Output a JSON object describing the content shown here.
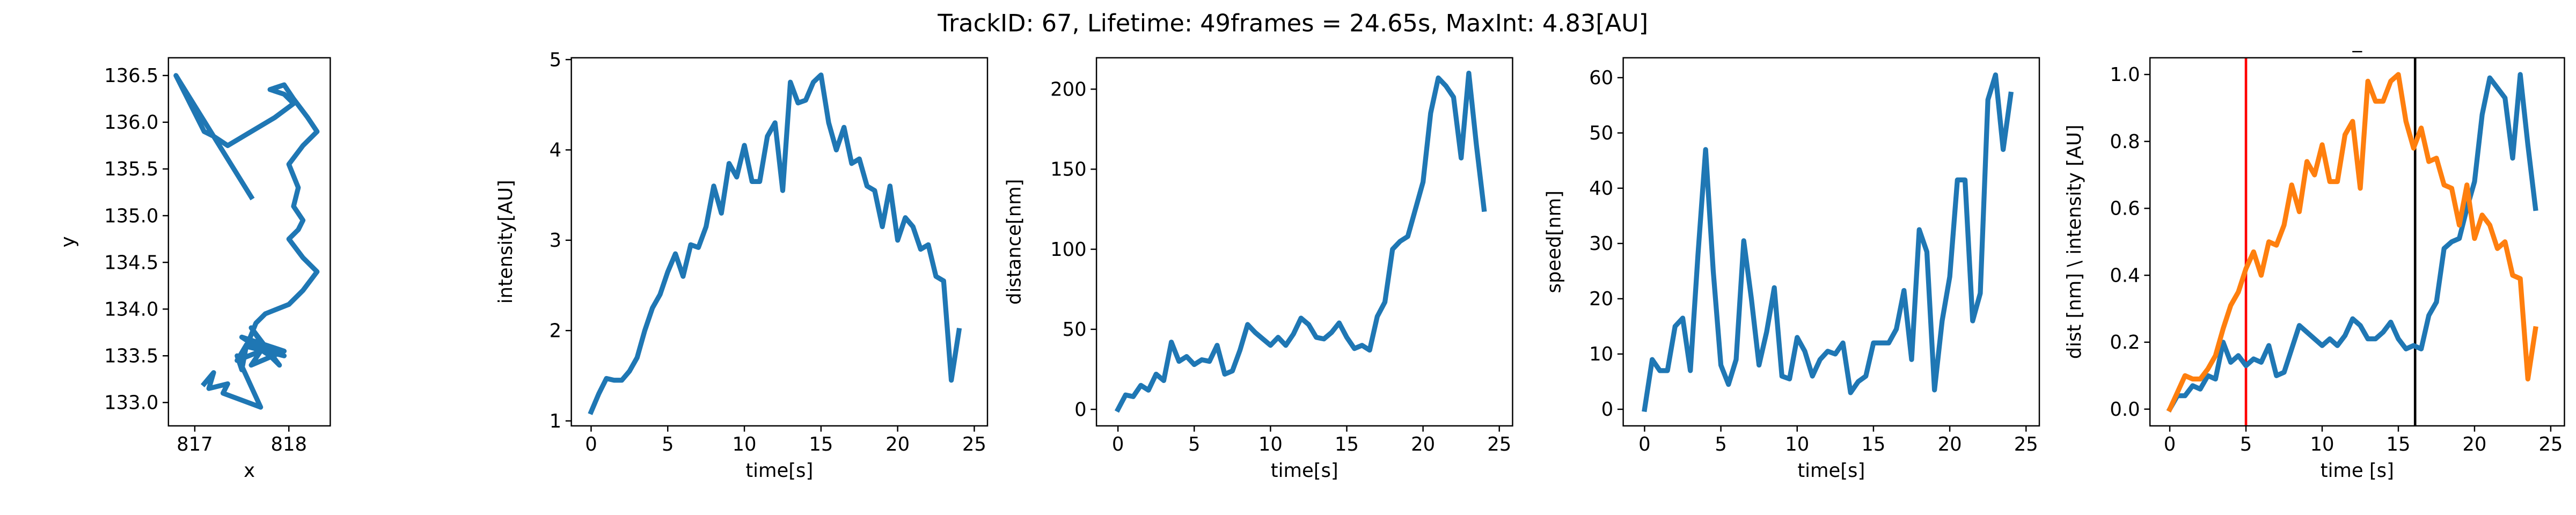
{
  "title": "TrackID: 67, Lifetime: 49frames = 24.65s, MaxInt: 4.83[AU]",
  "chart_data": [
    {
      "type": "line",
      "xlabel": "x",
      "ylabel": "y",
      "x": [
        817.1,
        817.2,
        817.15,
        817.35,
        817.3,
        817.7,
        817.45,
        817.5,
        817.55,
        817.45,
        817.7,
        817.6,
        817.95,
        817.5,
        817.8,
        817.6,
        817.9,
        817.7,
        817.95,
        817.55,
        817.65,
        817.75,
        818.0,
        818.15,
        818.3,
        818.15,
        818.0,
        818.1,
        818.15,
        818.05,
        818.1,
        818.0,
        818.15,
        818.3,
        818.2,
        818.05,
        817.95,
        817.8,
        817.95,
        818.05,
        817.85,
        817.6,
        817.35,
        817.2,
        817.1,
        816.95,
        816.8,
        817.2,
        817.6
      ],
      "series": [
        {
          "color": "#1f77b4",
          "values": [
            133.2,
            133.32,
            133.15,
            133.2,
            133.1,
            132.95,
            133.5,
            133.35,
            133.62,
            133.45,
            133.55,
            133.4,
            133.55,
            133.7,
            133.5,
            133.8,
            133.4,
            133.6,
            133.5,
            133.6,
            133.85,
            133.95,
            134.05,
            134.2,
            134.4,
            134.55,
            134.75,
            134.85,
            134.95,
            135.1,
            135.3,
            135.55,
            135.75,
            135.9,
            136.05,
            136.25,
            136.4,
            136.35,
            136.3,
            136.2,
            136.05,
            135.9,
            135.75,
            135.85,
            135.9,
            136.2,
            136.5,
            135.85,
            135.2
          ]
        }
      ],
      "xlim": [
        816.72,
        818.44
      ],
      "xticks": [
        817,
        818
      ],
      "ylim": [
        132.75,
        136.69
      ],
      "yticks": [
        {
          "value": 133,
          "label": "133.0"
        },
        133.5,
        {
          "value": 134,
          "label": "134.0"
        },
        134.5,
        {
          "value": 135,
          "label": "135.0"
        },
        135.5,
        {
          "value": 136,
          "label": "136.0"
        },
        136.5
      ]
    },
    {
      "type": "line",
      "xlabel": "time[s]",
      "ylabel": "intensity[AU]",
      "x": [
        0,
        0.5,
        1,
        1.5,
        2,
        2.5,
        3,
        3.5,
        4,
        4.5,
        5,
        5.5,
        6,
        6.5,
        7,
        7.5,
        8,
        8.5,
        9,
        9.5,
        10,
        10.5,
        11,
        11.5,
        12,
        12.5,
        13,
        13.5,
        14,
        14.5,
        15,
        15.5,
        16,
        16.5,
        17,
        17.5,
        18,
        18.5,
        19,
        19.5,
        20,
        20.5,
        21,
        21.5,
        22,
        22.5,
        23,
        23.5,
        24
      ],
      "series": [
        {
          "color": "#1f77b4",
          "values": [
            1.1,
            1.3,
            1.47,
            1.45,
            1.45,
            1.55,
            1.7,
            2.0,
            2.25,
            2.4,
            2.65,
            2.85,
            2.6,
            2.95,
            2.92,
            3.15,
            3.6,
            3.3,
            3.85,
            3.7,
            4.05,
            3.65,
            3.65,
            4.15,
            4.3,
            3.55,
            4.75,
            4.52,
            4.55,
            4.75,
            4.83,
            4.3,
            4.0,
            4.25,
            3.85,
            3.9,
            3.6,
            3.55,
            3.15,
            3.6,
            3.0,
            3.25,
            3.15,
            2.9,
            2.95,
            2.6,
            2.55,
            1.45,
            2.0
          ]
        }
      ],
      "xlim": [
        -1.29,
        25.86
      ],
      "xticks": [
        0,
        5,
        10,
        15,
        20,
        25
      ],
      "ylim": [
        0.945,
        5.02
      ],
      "yticks": [
        1,
        2,
        3,
        4,
        5
      ]
    },
    {
      "type": "line",
      "xlabel": "time[s]",
      "ylabel": "distance[nm]",
      "x": [
        0,
        0.5,
        1,
        1.5,
        2,
        2.5,
        3,
        3.5,
        4,
        4.5,
        5,
        5.5,
        6,
        6.5,
        7,
        7.5,
        8,
        8.5,
        9,
        9.5,
        10,
        10.5,
        11,
        11.5,
        12,
        12.5,
        13,
        13.5,
        14,
        14.5,
        15,
        15.5,
        16,
        16.5,
        17,
        17.5,
        18,
        18.5,
        19,
        19.5,
        20,
        20.5,
        21,
        21.5,
        22,
        22.5,
        23,
        23.5,
        24
      ],
      "series": [
        {
          "color": "#1f77b4",
          "values": [
            0,
            9,
            8,
            15,
            12,
            22,
            18,
            42,
            30,
            33,
            28,
            31,
            30,
            40,
            22,
            24,
            37,
            53,
            48,
            44,
            40,
            45,
            40,
            47,
            57,
            53,
            45,
            44,
            48,
            54,
            45,
            38,
            40,
            37,
            58,
            67,
            100,
            105,
            108,
            125,
            142,
            185,
            207,
            202,
            195,
            157,
            210,
            165,
            125
          ]
        }
      ],
      "xlim": [
        -1.41,
        25.87
      ],
      "xticks": [
        0,
        5,
        10,
        15,
        20,
        25
      ],
      "ylim": [
        -10.3,
        219.6
      ],
      "yticks": [
        0,
        50,
        100,
        150,
        200
      ]
    },
    {
      "type": "line",
      "xlabel": "time[s]",
      "ylabel": "speed[nm]",
      "x": [
        0,
        0.5,
        1,
        1.5,
        2,
        2.5,
        3,
        3.5,
        4,
        4.5,
        5,
        5.5,
        6,
        6.5,
        7,
        7.5,
        8,
        8.5,
        9,
        9.5,
        10,
        10.5,
        11,
        11.5,
        12,
        12.5,
        13,
        13.5,
        14,
        14.5,
        15,
        15.5,
        16,
        16.5,
        17,
        17.5,
        18,
        18.5,
        19,
        19.5,
        20,
        20.5,
        21,
        21.5,
        22,
        22.5,
        23,
        23.5,
        24
      ],
      "series": [
        {
          "color": "#1f77b4",
          "values": [
            0,
            9,
            7,
            7,
            15,
            16.5,
            7,
            28,
            47,
            25,
            8,
            4.5,
            9,
            30.5,
            20,
            8,
            14,
            22,
            6,
            5.5,
            13,
            10.5,
            6,
            9,
            10.5,
            10,
            12,
            3,
            5,
            6,
            12,
            12,
            12,
            14.5,
            21.5,
            9,
            32.5,
            28.5,
            3.5,
            16,
            24,
            41.5,
            41.5,
            16,
            21,
            56,
            60.5,
            47,
            57
          ]
        }
      ],
      "xlim": [
        -1.4,
        25.87
      ],
      "xticks": [
        0,
        5,
        10,
        15,
        20,
        25
      ],
      "ylim": [
        -3.0,
        63.6
      ],
      "yticks": [
        0,
        10,
        20,
        30,
        40,
        50,
        60
      ]
    },
    {
      "type": "line",
      "title": "_",
      "xlabel": "time [s]",
      "ylabel": "dist [nm] \\ intensity [AU]",
      "x": [
        0,
        0.5,
        1,
        1.5,
        2,
        2.5,
        3,
        3.5,
        4,
        4.5,
        5,
        5.5,
        6,
        6.5,
        7,
        7.5,
        8,
        8.5,
        9,
        9.5,
        10,
        10.5,
        11,
        11.5,
        12,
        12.5,
        13,
        13.5,
        14,
        14.5,
        15,
        15.5,
        16,
        16.5,
        17,
        17.5,
        18,
        18.5,
        19,
        19.5,
        20,
        20.5,
        21,
        21.5,
        22,
        22.5,
        23,
        23.5,
        24
      ],
      "series": [
        {
          "color": "#1f77b4",
          "values": [
            0,
            0.04,
            0.04,
            0.07,
            0.06,
            0.1,
            0.09,
            0.2,
            0.14,
            0.16,
            0.13,
            0.15,
            0.14,
            0.19,
            0.1,
            0.11,
            0.18,
            0.25,
            0.23,
            0.21,
            0.19,
            0.21,
            0.19,
            0.22,
            0.27,
            0.25,
            0.21,
            0.21,
            0.23,
            0.26,
            0.21,
            0.18,
            0.19,
            0.18,
            0.28,
            0.32,
            0.48,
            0.5,
            0.51,
            0.6,
            0.68,
            0.88,
            0.99,
            0.96,
            0.93,
            0.75,
            1.0,
            0.79,
            0.6
          ]
        },
        {
          "color": "#ff7f0e",
          "values": [
            0,
            0.05,
            0.1,
            0.09,
            0.09,
            0.12,
            0.16,
            0.24,
            0.31,
            0.35,
            0.42,
            0.47,
            0.4,
            0.5,
            0.49,
            0.55,
            0.67,
            0.59,
            0.74,
            0.7,
            0.79,
            0.68,
            0.68,
            0.82,
            0.86,
            0.66,
            0.98,
            0.92,
            0.92,
            0.98,
            1.0,
            0.86,
            0.78,
            0.84,
            0.74,
            0.75,
            0.67,
            0.66,
            0.55,
            0.67,
            0.51,
            0.58,
            0.55,
            0.48,
            0.5,
            0.4,
            0.39,
            0.09,
            0.24
          ]
        }
      ],
      "vlines": [
        {
          "x": 5,
          "color": "#ff0000"
        },
        {
          "x": 16.1,
          "color": "#000000"
        }
      ],
      "xlim": [
        -1.3,
        25.9
      ],
      "xticks": [
        0,
        5,
        10,
        15,
        20,
        25
      ],
      "ylim": [
        -0.05,
        1.05
      ],
      "yticks": [
        {
          "value": 0,
          "label": "0.0"
        },
        0.2,
        0.4,
        0.6,
        0.8,
        {
          "value": 1,
          "label": "1.0"
        }
      ]
    }
  ]
}
